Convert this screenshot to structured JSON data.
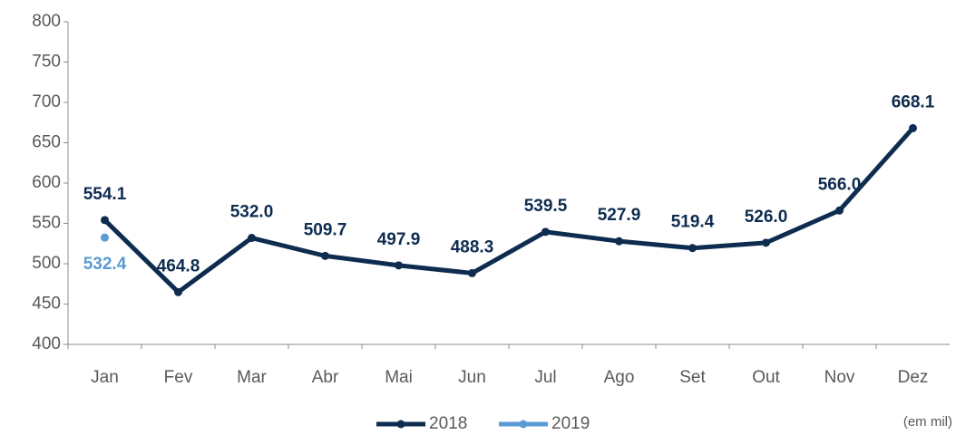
{
  "chart_data": {
    "type": "line",
    "categories": [
      "Jan",
      "Fev",
      "Mar",
      "Abr",
      "Mai",
      "Jun",
      "Jul",
      "Ago",
      "Set",
      "Out",
      "Nov",
      "Dez"
    ],
    "series": [
      {
        "name": "2018",
        "color": "#0e2c50",
        "values": [
          554.1,
          464.8,
          532.0,
          509.7,
          497.9,
          488.3,
          539.5,
          527.9,
          519.4,
          526.0,
          566.0,
          668.1
        ],
        "value_labels": [
          "554.1",
          "464.8",
          "532.0",
          "509.7",
          "497.9",
          "488.3",
          "539.5",
          "527.9",
          "519.4",
          "526.0",
          "566.0",
          "668.1"
        ]
      },
      {
        "name": "2019",
        "color": "#5b9bd5",
        "values": [
          532.4,
          null,
          null,
          null,
          null,
          null,
          null,
          null,
          null,
          null,
          null,
          null
        ],
        "value_labels": [
          "532.4",
          null,
          null,
          null,
          null,
          null,
          null,
          null,
          null,
          null,
          null,
          null
        ]
      }
    ],
    "ylim": [
      400,
      800
    ],
    "yticks": [
      400,
      450,
      500,
      550,
      600,
      650,
      700,
      750,
      800
    ],
    "grid": false,
    "legend": "bottom",
    "annotation": "(em mil)"
  }
}
